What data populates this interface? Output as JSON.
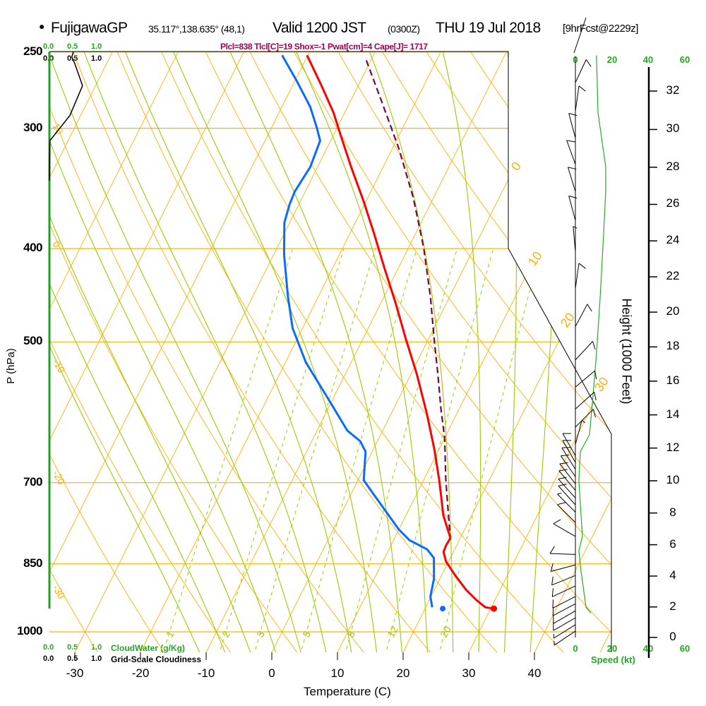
{
  "header": {
    "bullet": "●",
    "station": "FujigawaGP",
    "coords": "35.117°,138.635° (48,1)",
    "valid": "Valid 1200 JST",
    "utc": "(0300Z)",
    "date": "THU 19 Jul 2018",
    "forecast": "[9hrFcst@2229z]"
  },
  "indices": "Plcl=838 Tlcl[C]=19 Shox=-1 Pwat[cm]=4 Cape[J]= 1717",
  "cloud_axis": {
    "top_green": [
      "0.0",
      "0.5",
      "1.0"
    ],
    "top_black": [
      "0.0",
      "0.5",
      "1.0"
    ],
    "bottom_green": [
      "0.0",
      "0.5",
      "1.0"
    ],
    "bottom_green_label": "CloudWater (g/Kg)",
    "bottom_black": [
      "0.0",
      "0.5",
      "1.0"
    ],
    "bottom_black_label": "Grid-Scale Cloudiness"
  },
  "speed_axis": {
    "ticks": [
      "0",
      "20",
      "40",
      "60"
    ],
    "label": "Speed (kt)"
  },
  "colors": {
    "temperature": "#ff0000",
    "dewpoint": "#0a6cff",
    "parcel": "#7a0050",
    "isotherm": "#ffb000",
    "moist": "#99cc00",
    "speed": "#22b022",
    "cloud_axis": "#22a022"
  },
  "chart_data": {
    "type": "skew-t",
    "title": "FujigawaGP Valid 1200 JST THU 19 Jul 2018",
    "xlabel": "Temperature (C)",
    "ylabel": "P (hPa)",
    "y2label": "Height (1000 Feet)",
    "pressure_ticks": [
      250,
      300,
      400,
      500,
      700,
      850,
      1000
    ],
    "temperature_ticks": [
      -30,
      -20,
      -10,
      0,
      10,
      20,
      30,
      40
    ],
    "height_ticks": [
      0,
      2,
      4,
      6,
      8,
      10,
      12,
      14,
      16,
      18,
      20,
      22,
      24,
      26,
      28,
      30,
      32
    ],
    "isotherm_labels": [
      0,
      10,
      20,
      30
    ],
    "dry_adiabat_labels": [
      10,
      0,
      -10,
      -20,
      -30
    ],
    "mixing_ratio_labels": [
      1,
      2,
      3,
      5,
      8,
      12,
      20
    ],
    "temperature": [
      [
        252,
        -40.1
      ],
      [
        270,
        -35.8
      ],
      [
        289,
        -31.7
      ],
      [
        305,
        -28.9
      ],
      [
        329,
        -24.9
      ],
      [
        357,
        -20.4
      ],
      [
        386,
        -16.3
      ],
      [
        420,
        -12.0
      ],
      [
        456,
        -7.7
      ],
      [
        497,
        -3.4
      ],
      [
        540,
        0.9
      ],
      [
        593,
        5.4
      ],
      [
        645,
        9.2
      ],
      [
        696,
        12.4
      ],
      [
        757,
        15.7
      ],
      [
        799,
        18.5
      ],
      [
        813,
        18.4
      ],
      [
        826,
        18.5
      ],
      [
        845,
        19.6
      ],
      [
        874,
        22.1
      ],
      [
        904,
        24.8
      ],
      [
        927,
        27.2
      ],
      [
        943,
        29.1
      ],
      [
        946,
        30.5
      ]
    ],
    "dewpoint": [
      [
        252,
        -43.9
      ],
      [
        268,
        -39.7
      ],
      [
        285,
        -35.7
      ],
      [
        299,
        -33.2
      ],
      [
        309,
        -31.6
      ],
      [
        329,
        -31.1
      ],
      [
        349,
        -31.6
      ],
      [
        360,
        -31.4
      ],
      [
        376,
        -30.8
      ],
      [
        406,
        -28.4
      ],
      [
        449,
        -24.6
      ],
      [
        484,
        -21.5
      ],
      [
        525,
        -16.9
      ],
      [
        573,
        -10.7
      ],
      [
        618,
        -5.4
      ],
      [
        634,
        -2.6
      ],
      [
        650,
        -1.0
      ],
      [
        696,
        0.9
      ],
      [
        720,
        3.5
      ],
      [
        783,
        10.0
      ],
      [
        803,
        12.4
      ],
      [
        821,
        15.8
      ],
      [
        838,
        17.5
      ],
      [
        881,
        19.1
      ],
      [
        919,
        19.9
      ],
      [
        943,
        21.0
      ]
    ],
    "parcel": [
      [
        255,
        -30.7
      ],
      [
        280,
        -25.5
      ],
      [
        315,
        -19.0
      ],
      [
        354,
        -13.1
      ],
      [
        399,
        -7.7
      ],
      [
        449,
        -2.9
      ],
      [
        497,
        0.9
      ],
      [
        540,
        4.1
      ],
      [
        588,
        7.3
      ],
      [
        629,
        10.0
      ],
      [
        696,
        13.4
      ],
      [
        770,
        17.1
      ],
      [
        799,
        18.5
      ]
    ],
    "surface": {
      "pressure": 946,
      "temperature": 30.5,
      "dewpoint": 22.7
    },
    "wind": [
      [
        269,
        25,
        10
      ],
      [
        288,
        8,
        10
      ],
      [
        307,
        345,
        10
      ],
      [
        327,
        340,
        10
      ],
      [
        349,
        343,
        10
      ],
      [
        374,
        345,
        10
      ],
      [
        403,
        355,
        5
      ],
      [
        440,
        8,
        10
      ],
      [
        482,
        28,
        10
      ],
      [
        522,
        43,
        10
      ],
      [
        557,
        50,
        10
      ],
      [
        587,
        48,
        10
      ],
      [
        613,
        45,
        10
      ],
      [
        639,
        15,
        5
      ],
      [
        656,
        330,
        10
      ],
      [
        667,
        330,
        10
      ],
      [
        678,
        328,
        10
      ],
      [
        690,
        325,
        10
      ],
      [
        702,
        322,
        10
      ],
      [
        713,
        320,
        10
      ],
      [
        726,
        318,
        10
      ],
      [
        738,
        318,
        10
      ],
      [
        751,
        315,
        5
      ],
      [
        770,
        315,
        10
      ],
      [
        796,
        300,
        10
      ],
      [
        831,
        272,
        10
      ],
      [
        852,
        255,
        10
      ],
      [
        874,
        248,
        10
      ],
      [
        896,
        245,
        10
      ],
      [
        919,
        243,
        10
      ],
      [
        935,
        242,
        10
      ],
      [
        951,
        240,
        10
      ],
      [
        967,
        240,
        10
      ],
      [
        983,
        238,
        5
      ],
      [
        998,
        236,
        5
      ]
    ],
    "wind_speed_profile": [
      [
        252,
        11.5
      ],
      [
        289,
        12.3
      ],
      [
        329,
        16.5
      ],
      [
        349,
        16.5
      ],
      [
        386,
        15.4
      ],
      [
        449,
        13.5
      ],
      [
        514,
        11.5
      ],
      [
        568,
        9.6
      ],
      [
        624,
        7.7
      ],
      [
        650,
        2.7
      ],
      [
        696,
        1.9
      ],
      [
        796,
        3.8
      ],
      [
        824,
        1.9
      ],
      [
        866,
        3.1
      ],
      [
        943,
        5.8
      ],
      [
        956,
        8.5
      ]
    ],
    "cloudiness": [
      [
        253,
        0.46
      ],
      [
        257,
        0.52
      ],
      [
        271,
        0.68
      ],
      [
        291,
        0.42
      ],
      [
        309,
        0.01
      ]
    ]
  }
}
